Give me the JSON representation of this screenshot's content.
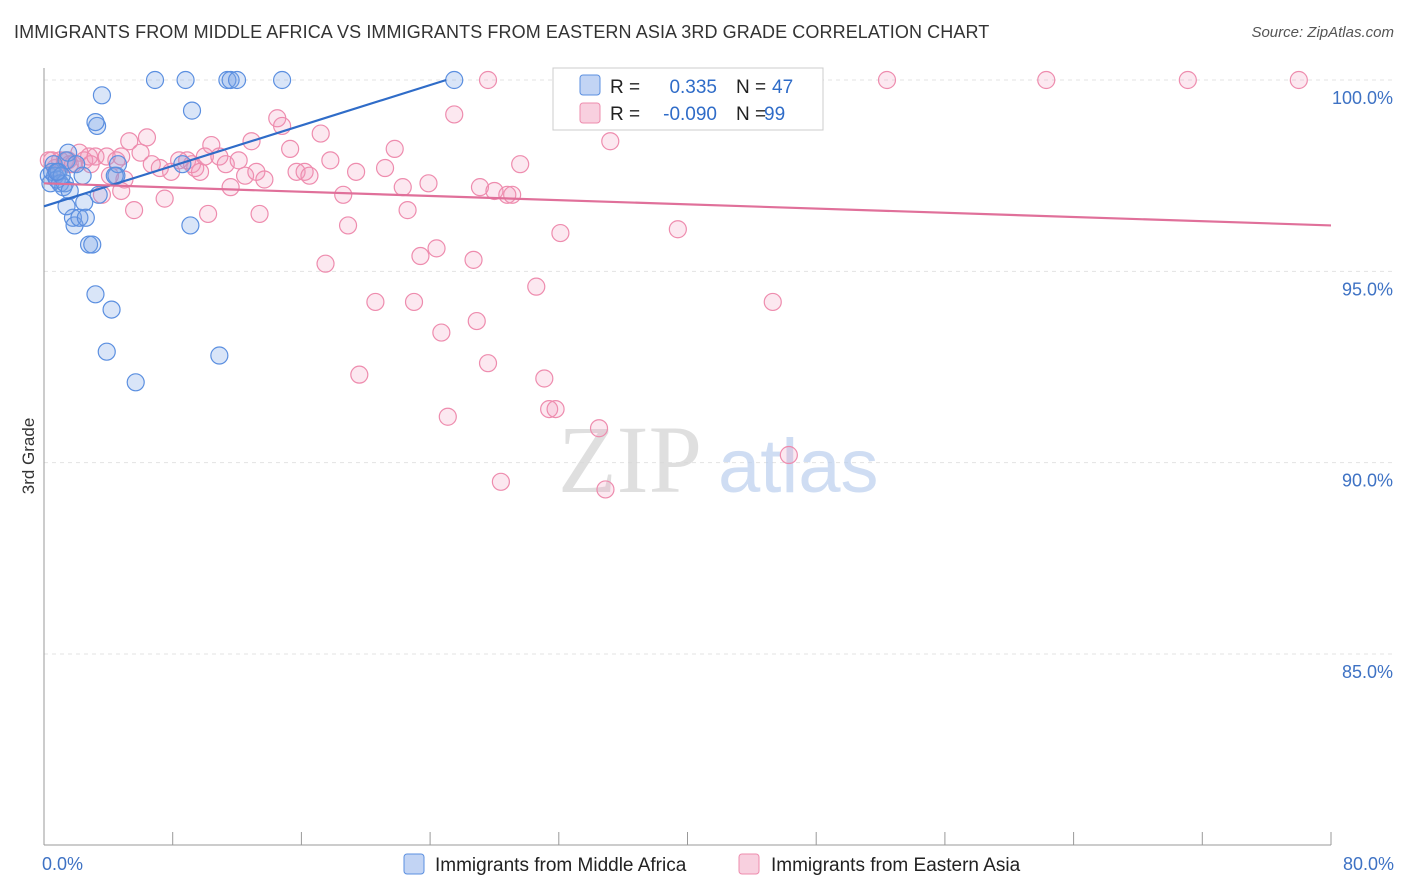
{
  "chart_data": {
    "type": "scatter",
    "title": "IMMIGRANTS FROM MIDDLE AFRICA VS IMMIGRANTS FROM EASTERN ASIA 3RD GRADE CORRELATION CHART",
    "source": "Source: ZipAtlas.com",
    "ylabel": "3rd Grade",
    "xlim": [
      0,
      80
    ],
    "ylim": [
      80.5,
      100.7
    ],
    "x_tick_labels": [
      "0.0%",
      "80.0%"
    ],
    "y_ticks": [
      {
        "value": 100,
        "label": "100.0%"
      },
      {
        "value": 95,
        "label": "95.0%"
      },
      {
        "value": 90,
        "label": "90.0%"
      },
      {
        "value": 85,
        "label": "85.0%"
      }
    ],
    "watermark": {
      "zip": "ZIP",
      "atlas": "atlas"
    },
    "colors": {
      "blue": "#5b8fe0",
      "blue_fill": "rgba(120,160,230,0.28)",
      "blue_line": "#2f6cc8",
      "pink": "#ee8cae",
      "pink_fill": "rgba(240,150,185,0.22)",
      "pink_line": "#e0709a",
      "tick_label": "#3e72c4"
    },
    "legend": {
      "r_label": "R =",
      "n_label": "N =",
      "entries": [
        {
          "r": "0.335",
          "n": "47"
        },
        {
          "r": "-0.090",
          "n": "99"
        }
      ]
    },
    "series": [
      {
        "name": "Immigrants from Middle Africa",
        "color": "blue",
        "trend": {
          "x1": 0,
          "y1": 96.7,
          "x2": 25.0,
          "y2": 100.0
        },
        "points": [
          [
            0.3,
            97.5
          ],
          [
            0.4,
            97.3
          ],
          [
            0.5,
            97.6
          ],
          [
            0.6,
            97.8
          ],
          [
            0.7,
            97.5
          ],
          [
            0.8,
            97.4
          ],
          [
            0.9,
            97.6
          ],
          [
            1.0,
            97.3
          ],
          [
            1.2,
            97.2
          ],
          [
            1.3,
            97.3
          ],
          [
            1.4,
            97.9
          ],
          [
            1.5,
            98.1
          ],
          [
            1.6,
            97.1
          ],
          [
            1.8,
            96.4
          ],
          [
            1.9,
            96.2
          ],
          [
            2.0,
            97.8
          ],
          [
            2.2,
            96.4
          ],
          [
            2.4,
            97.5
          ],
          [
            2.5,
            96.8
          ],
          [
            2.6,
            96.4
          ],
          [
            2.8,
            95.7
          ],
          [
            3.0,
            95.7
          ],
          [
            3.2,
            94.4
          ],
          [
            1.4,
            96.7
          ],
          [
            3.3,
            98.8
          ],
          [
            3.2,
            98.9
          ],
          [
            3.4,
            97.0
          ],
          [
            3.6,
            99.6
          ],
          [
            3.9,
            92.9
          ],
          [
            4.2,
            94.0
          ],
          [
            4.5,
            97.5
          ],
          [
            4.6,
            97.8
          ],
          [
            5.7,
            92.1
          ],
          [
            6.9,
            100.0
          ],
          [
            8.6,
            97.8
          ],
          [
            8.8,
            100.0
          ],
          [
            9.1,
            96.2
          ],
          [
            9.2,
            99.2
          ],
          [
            10.9,
            92.8
          ],
          [
            11.4,
            100.0
          ],
          [
            11.6,
            100.0
          ],
          [
            12.0,
            100.0
          ],
          [
            14.8,
            100.0
          ],
          [
            25.5,
            100.0
          ],
          [
            4.4,
            97.5
          ],
          [
            1.1,
            97.5
          ],
          [
            0.8,
            97.6
          ]
        ]
      },
      {
        "name": "Immigrants from Eastern Asia",
        "color": "pink",
        "trend": {
          "x1": 0,
          "y1": 97.3,
          "x2": 80,
          "y2": 96.2
        },
        "points": [
          [
            0.5,
            97.9
          ],
          [
            0.7,
            97.7
          ],
          [
            1.0,
            97.9
          ],
          [
            1.3,
            97.9
          ],
          [
            1.5,
            97.9
          ],
          [
            1.8,
            97.8
          ],
          [
            2.2,
            98.1
          ],
          [
            2.5,
            97.9
          ],
          [
            2.8,
            98.0
          ],
          [
            3.2,
            98.0
          ],
          [
            3.6,
            97.0
          ],
          [
            3.9,
            98.0
          ],
          [
            4.1,
            97.5
          ],
          [
            4.5,
            97.9
          ],
          [
            4.8,
            98.0
          ],
          [
            5.0,
            97.4
          ],
          [
            5.3,
            98.4
          ],
          [
            5.6,
            96.6
          ],
          [
            6.0,
            98.1
          ],
          [
            6.4,
            98.5
          ],
          [
            6.7,
            97.8
          ],
          [
            7.2,
            97.7
          ],
          [
            7.5,
            96.9
          ],
          [
            7.9,
            97.6
          ],
          [
            8.4,
            97.9
          ],
          [
            8.9,
            97.9
          ],
          [
            9.2,
            97.8
          ],
          [
            9.4,
            97.7
          ],
          [
            9.7,
            97.6
          ],
          [
            10.0,
            98.0
          ],
          [
            10.2,
            96.5
          ],
          [
            10.4,
            98.3
          ],
          [
            10.9,
            98.0
          ],
          [
            11.3,
            97.8
          ],
          [
            11.6,
            97.2
          ],
          [
            12.1,
            97.9
          ],
          [
            12.5,
            97.5
          ],
          [
            12.9,
            98.4
          ],
          [
            13.2,
            97.6
          ],
          [
            13.4,
            96.5
          ],
          [
            13.7,
            97.4
          ],
          [
            14.5,
            99.0
          ],
          [
            14.8,
            98.8
          ],
          [
            15.3,
            98.2
          ],
          [
            15.7,
            97.6
          ],
          [
            16.2,
            97.6
          ],
          [
            16.5,
            97.5
          ],
          [
            17.2,
            98.6
          ],
          [
            17.5,
            95.2
          ],
          [
            17.8,
            97.9
          ],
          [
            18.6,
            97.0
          ],
          [
            18.9,
            96.2
          ],
          [
            19.4,
            97.6
          ],
          [
            19.6,
            92.3
          ],
          [
            20.6,
            94.2
          ],
          [
            21.2,
            97.7
          ],
          [
            21.8,
            98.2
          ],
          [
            22.3,
            97.2
          ],
          [
            22.6,
            96.6
          ],
          [
            23.0,
            94.2
          ],
          [
            23.4,
            95.4
          ],
          [
            23.9,
            97.3
          ],
          [
            24.4,
            95.6
          ],
          [
            24.7,
            93.4
          ],
          [
            25.1,
            91.2
          ],
          [
            25.5,
            99.1
          ],
          [
            26.7,
            95.3
          ],
          [
            26.9,
            93.7
          ],
          [
            27.1,
            97.2
          ],
          [
            27.6,
            92.6
          ],
          [
            28.0,
            97.1
          ],
          [
            28.4,
            89.5
          ],
          [
            28.8,
            97.0
          ],
          [
            29.1,
            97.0
          ],
          [
            29.6,
            97.8
          ],
          [
            30.6,
            94.6
          ],
          [
            31.1,
            92.2
          ],
          [
            31.4,
            91.4
          ],
          [
            31.8,
            91.4
          ],
          [
            32.1,
            96.0
          ],
          [
            33.4,
            100.0
          ],
          [
            34.5,
            90.9
          ],
          [
            34.9,
            89.3
          ],
          [
            35.2,
            98.4
          ],
          [
            36.8,
            100.0
          ],
          [
            39.4,
            96.1
          ],
          [
            40.5,
            100.0
          ],
          [
            45.3,
            94.2
          ],
          [
            46.3,
            90.2
          ],
          [
            52.4,
            100.0
          ],
          [
            62.3,
            100.0
          ],
          [
            71.1,
            100.0
          ],
          [
            78.0,
            100.0
          ],
          [
            27.6,
            100.0
          ],
          [
            36.4,
            100.0
          ],
          [
            0.3,
            97.9
          ],
          [
            1.6,
            97.8
          ],
          [
            2.9,
            97.8
          ],
          [
            4.8,
            97.1
          ]
        ]
      }
    ]
  },
  "bottom_legend": [
    {
      "label": "Immigrants from Middle Africa"
    },
    {
      "label": "Immigrants from Eastern Asia"
    }
  ]
}
